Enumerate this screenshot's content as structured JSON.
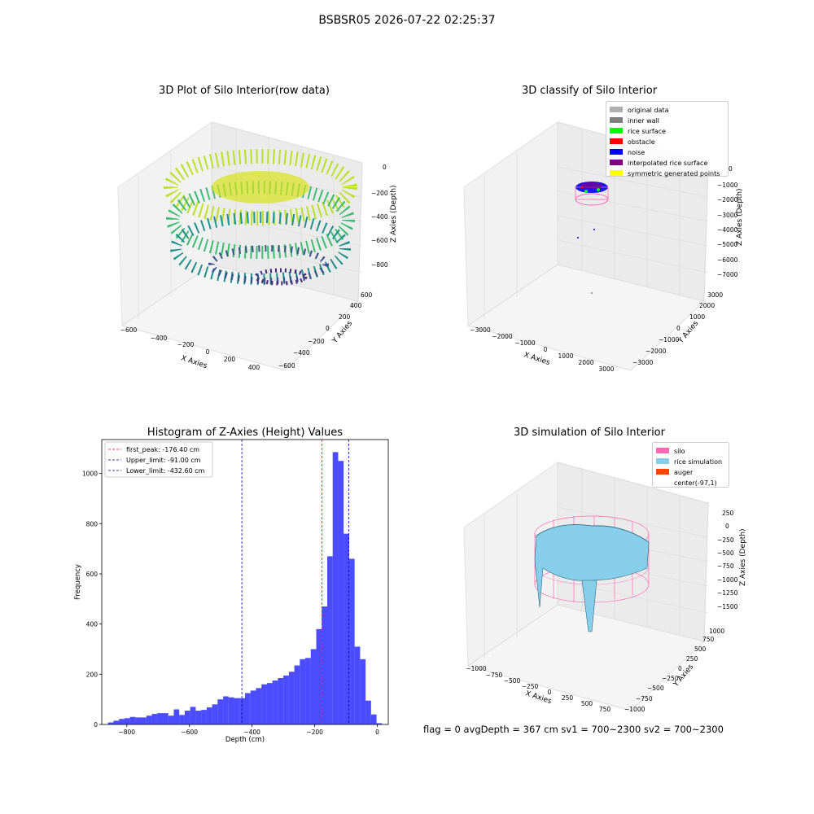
{
  "suptitle": "BSBSR05 2026-07-22 02:25:37",
  "status_text": "flag = 0     avgDepth = 367 cm  sv1 = 700~2300  sv2 = 700~2300",
  "panels": {
    "raw": {
      "title": "3D Plot of Silo Interior(row data)",
      "xlabel": "X Axies",
      "ylabel": "Y Axies",
      "zlabel": "Z Axies (Depth)",
      "x_ticks": [
        "−600",
        "−400",
        "−200",
        "0",
        "200",
        "400"
      ],
      "y_ticks": [
        "−600",
        "−400",
        "−200",
        "0",
        "200",
        "400",
        "600"
      ],
      "z_ticks": [
        "0",
        "−200",
        "−400",
        "−600",
        "−800"
      ]
    },
    "classify": {
      "title": "3D classify of Silo Interior",
      "xlabel": "X Axies",
      "ylabel": "Y Axies",
      "zlabel": "Z Axies (Depth)",
      "x_ticks": [
        "−3000",
        "−2000",
        "−1000",
        "0",
        "1000",
        "2000",
        "3000"
      ],
      "y_ticks": [
        "−3000",
        "−2000",
        "−1000",
        "0",
        "1000",
        "2000",
        "3000"
      ],
      "z_ticks": [
        "0",
        "−1000",
        "−2000",
        "−3000",
        "−4000",
        "−5000",
        "−6000",
        "−7000"
      ],
      "legend": [
        {
          "label": "original data",
          "color": "#b0b0b0"
        },
        {
          "label": "inner wall",
          "color": "#808080"
        },
        {
          "label": "rice surface",
          "color": "#00ff00"
        },
        {
          "label": "obstacle",
          "color": "#ff0000"
        },
        {
          "label": "noise",
          "color": "#0000ff"
        },
        {
          "label": "interpolated rice surface",
          "color": "#800080"
        },
        {
          "label": "symmetric generated points",
          "color": "#ffff00"
        }
      ]
    },
    "simulation": {
      "title": "3D simulation of Silo Interior",
      "xlabel": "X Axies",
      "ylabel": "Y Axies",
      "zlabel": "Z Axies (Depth)",
      "x_ticks": [
        "−1000",
        "−750",
        "−500",
        "−250",
        "0",
        "250",
        "500",
        "750"
      ],
      "y_ticks": [
        "−1000",
        "−750",
        "−500",
        "−250",
        "0",
        "250",
        "500",
        "750",
        "1000"
      ],
      "z_ticks": [
        "250",
        "0",
        "−250",
        "−500",
        "−750",
        "−1000",
        "−1250",
        "−1500"
      ],
      "legend": [
        {
          "label": "silo",
          "color": "#ff69b4"
        },
        {
          "label": "rice simulation",
          "color": "#87ceeb"
        },
        {
          "label": "auger",
          "color": "#ff4500"
        },
        {
          "label": "center(-97,1)",
          "color": "#ffffff"
        }
      ]
    }
  },
  "chart_data": {
    "type": "bar",
    "title": "Histogram of Z-Axies (Height) Values",
    "xlabel": "Depth (cm)",
    "ylabel": "Frequency",
    "xlim": [
      -880,
      35
    ],
    "ylim": [
      0,
      1135
    ],
    "x_ticks": [
      -800,
      -600,
      -400,
      -200,
      0
    ],
    "x_tick_labels": [
      "−800",
      "−600",
      "−400",
      "−200",
      "0"
    ],
    "y_ticks": [
      0,
      200,
      400,
      600,
      800,
      1000
    ],
    "bar_color": "#0000ff",
    "bin_start": -860,
    "bin_width": 17.5,
    "values": [
      8,
      15,
      22,
      25,
      30,
      28,
      28,
      35,
      42,
      45,
      45,
      35,
      60,
      38,
      55,
      70,
      55,
      58,
      68,
      80,
      100,
      112,
      108,
      105,
      105,
      125,
      135,
      145,
      160,
      165,
      175,
      185,
      195,
      210,
      235,
      260,
      265,
      300,
      380,
      470,
      670,
      1085,
      1050,
      760,
      660,
      310,
      260,
      95,
      40,
      5
    ],
    "vlines": [
      {
        "label": "first_peak: -176.40 cm",
        "x": -176.4,
        "color": "#ff0000"
      },
      {
        "label": "Upper_limit: -91.00 cm",
        "x": -91.0,
        "color": "#0000aa"
      },
      {
        "label": "Lower_limit: -432.60 cm",
        "x": -432.6,
        "color": "#0000aa"
      }
    ],
    "legend_position": "top-left"
  }
}
